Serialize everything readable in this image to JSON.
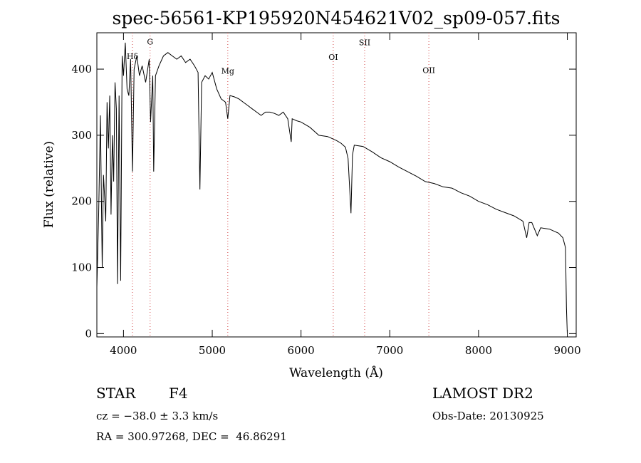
{
  "chart_data": {
    "type": "line",
    "title": "spec-56561-KP195920N454621V02_sp09-057.fits",
    "xlabel": "Wavelength (Å)",
    "ylabel": "Flux (relative)",
    "xlim": [
      3700,
      9100
    ],
    "ylim": [
      -5,
      455
    ],
    "xticks": [
      4000,
      5000,
      6000,
      7000,
      8000,
      9000
    ],
    "yticks": [
      0,
      100,
      200,
      300,
      400
    ],
    "grid": false,
    "series": [
      {
        "x": [
          3700,
          3720,
          3740,
          3760,
          3775,
          3790,
          3800,
          3815,
          3830,
          3845,
          3860,
          3875,
          3889,
          3905,
          3920,
          3933,
          3950,
          3968,
          3985,
          4000,
          4020,
          4040,
          4060,
          4080,
          4101,
          4120,
          4150,
          4180,
          4210,
          4250,
          4290,
          4305,
          4330,
          4340,
          4360,
          4400,
          4450,
          4500,
          4550,
          4600,
          4650,
          4700,
          4750,
          4800,
          4840,
          4861,
          4880,
          4920,
          4960,
          5000,
          5050,
          5100,
          5150,
          5175,
          5200,
          5250,
          5300,
          5350,
          5400,
          5450,
          5500,
          5550,
          5600,
          5650,
          5700,
          5750,
          5800,
          5850,
          5890,
          5900,
          5950,
          6000,
          6100,
          6200,
          6300,
          6400,
          6450,
          6500,
          6530,
          6563,
          6580,
          6600,
          6700,
          6800,
          6900,
          7000,
          7100,
          7200,
          7300,
          7400,
          7500,
          7600,
          7700,
          7800,
          7900,
          8000,
          8100,
          8200,
          8300,
          8400,
          8500,
          8542,
          8570,
          8600,
          8662,
          8700,
          8800,
          8900,
          8950,
          8980,
          8990,
          9000
        ],
        "y": [
          70,
          180,
          330,
          100,
          240,
          200,
          170,
          350,
          280,
          360,
          180,
          300,
          230,
          380,
          340,
          75,
          360,
          80,
          420,
          390,
          440,
          370,
          360,
          415,
          245,
          400,
          420,
          390,
          405,
          380,
          415,
          320,
          390,
          245,
          390,
          405,
          420,
          425,
          420,
          415,
          420,
          410,
          415,
          405,
          395,
          218,
          380,
          390,
          385,
          395,
          370,
          355,
          350,
          325,
          360,
          358,
          355,
          350,
          345,
          340,
          335,
          330,
          335,
          335,
          333,
          330,
          335,
          325,
          290,
          325,
          322,
          320,
          312,
          300,
          298,
          292,
          288,
          282,
          265,
          182,
          270,
          285,
          283,
          275,
          266,
          260,
          252,
          245,
          238,
          230,
          227,
          222,
          220,
          213,
          208,
          200,
          195,
          188,
          183,
          178,
          170,
          145,
          168,
          168,
          148,
          160,
          158,
          152,
          145,
          130,
          40,
          0
        ]
      }
    ],
    "annotations": [
      {
        "label": "Hδ",
        "x": 4101,
        "y": 415
      },
      {
        "label": "G",
        "x": 4300,
        "y": 437
      },
      {
        "label": "Mg",
        "x": 5175,
        "y": 393
      },
      {
        "label": "OI",
        "x": 6363,
        "y": 414
      },
      {
        "label": "SII",
        "x": 6717,
        "y": 436
      },
      {
        "label": "OII",
        "x": 7440,
        "y": 394
      }
    ]
  },
  "info": {
    "object_type": "STAR",
    "subclass": "F4",
    "redshift": "cz = −38.0 ± 3.3 km/s",
    "coords": "RA = 300.97268, DEC =  46.86291",
    "survey": "LAMOST DR2",
    "obs_date": "Obs-Date: 20130925"
  }
}
